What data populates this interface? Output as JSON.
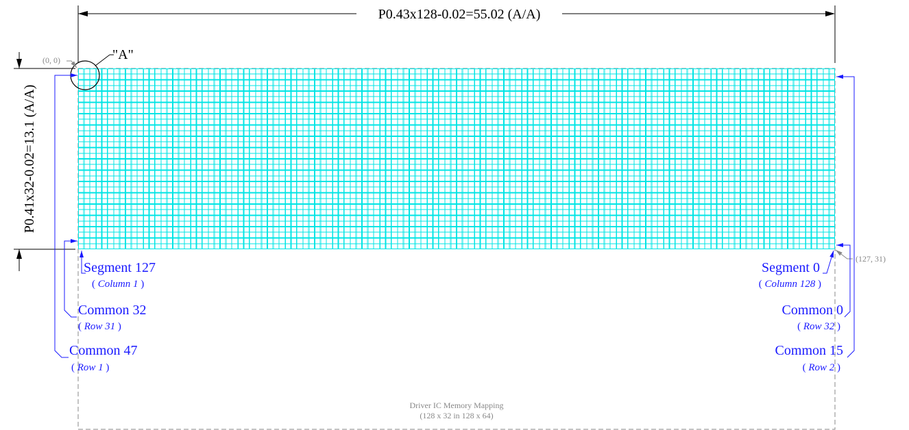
{
  "dimensions": {
    "width_text": "P0.43x128-0.02=55.02 (A/A)",
    "height_text": "P0.41x32-0.02=13.1 (A/A)"
  },
  "matrix": {
    "columns": 128,
    "rows": 32,
    "grid_color": "#00e5e5"
  },
  "origin_label": "(0, 0)",
  "end_label": "(127, 31)",
  "detail_label": "\"A\"",
  "left_labels": {
    "segment": "Segment 127",
    "segment_sub": "Column 1",
    "common_a": "Common 32",
    "common_a_sub": "Row 31",
    "common_b": "Common 47",
    "common_b_sub": "Row 1"
  },
  "right_labels": {
    "segment": "Segment 0",
    "segment_sub": "Column 128",
    "common_a": "Common 0",
    "common_a_sub": "Row 32",
    "common_b": "Common 15",
    "common_b_sub": "Row 2"
  },
  "caption": {
    "line1": "Driver IC Memory Mapping",
    "line2": "(128 x 32 in 128 x 64)"
  },
  "colors": {
    "label_blue": "#1a1aff",
    "dim_black": "#000000",
    "gray": "#888888"
  }
}
